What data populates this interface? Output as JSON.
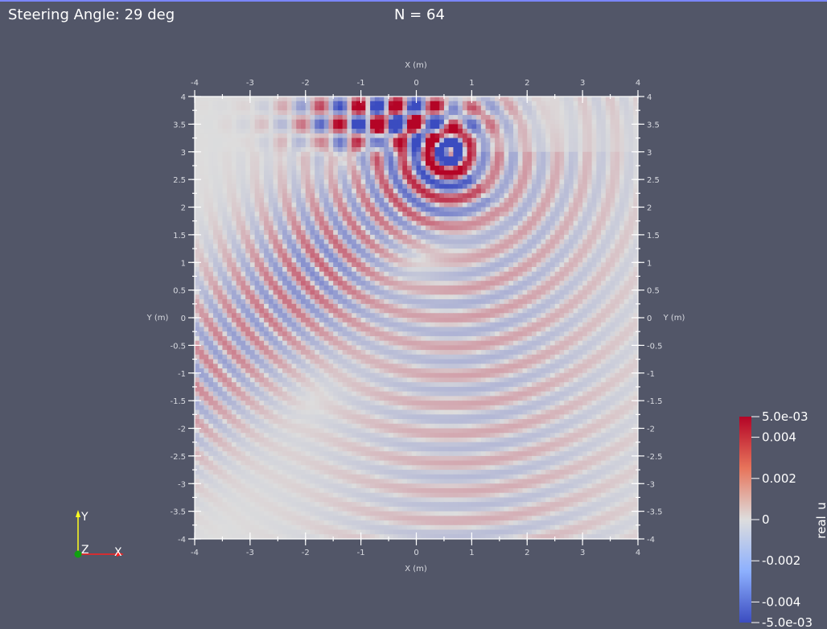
{
  "overlay": {
    "steering_label": "Steering Angle: 29 deg",
    "n_label": "N = 64"
  },
  "axes": {
    "x_title": "X (m)",
    "y_title": "Y (m)",
    "x_ticks": [
      "-4",
      "-3",
      "-2",
      "-1",
      "0",
      "1",
      "2",
      "3",
      "4"
    ],
    "y_ticks": [
      "4",
      "3.5",
      "3",
      "2.5",
      "2",
      "1.5",
      "1",
      "0.5",
      "0",
      "-0.5",
      "-1",
      "-1.5",
      "-2",
      "-2.5",
      "-3",
      "-3.5",
      "-4"
    ],
    "x_range": [
      -4,
      4
    ],
    "y_range": [
      -4,
      4
    ]
  },
  "colorbar": {
    "title": "real_u",
    "labels": [
      "5.0e-03",
      "0.004",
      "0.002",
      "0",
      "-0.002",
      "-0.004",
      "-5.0e-03"
    ],
    "label_values": [
      0.005,
      0.004,
      0.002,
      0,
      -0.002,
      -0.004,
      -0.005
    ],
    "range": [
      -0.005,
      0.005
    ],
    "colors": {
      "high": "#b40426",
      "mid": "#dddddd",
      "low": "#3b4cc0"
    }
  },
  "orientation": {
    "y_label": "Y",
    "z_label": "Z",
    "x_label": "X",
    "colors": {
      "x": "#ff2020",
      "y": "#ffff20",
      "z": "#10a010"
    }
  },
  "colors": {
    "background": "#525668",
    "axis_lines": "#ffffff",
    "field_neutral": "#c0c0c0"
  }
}
